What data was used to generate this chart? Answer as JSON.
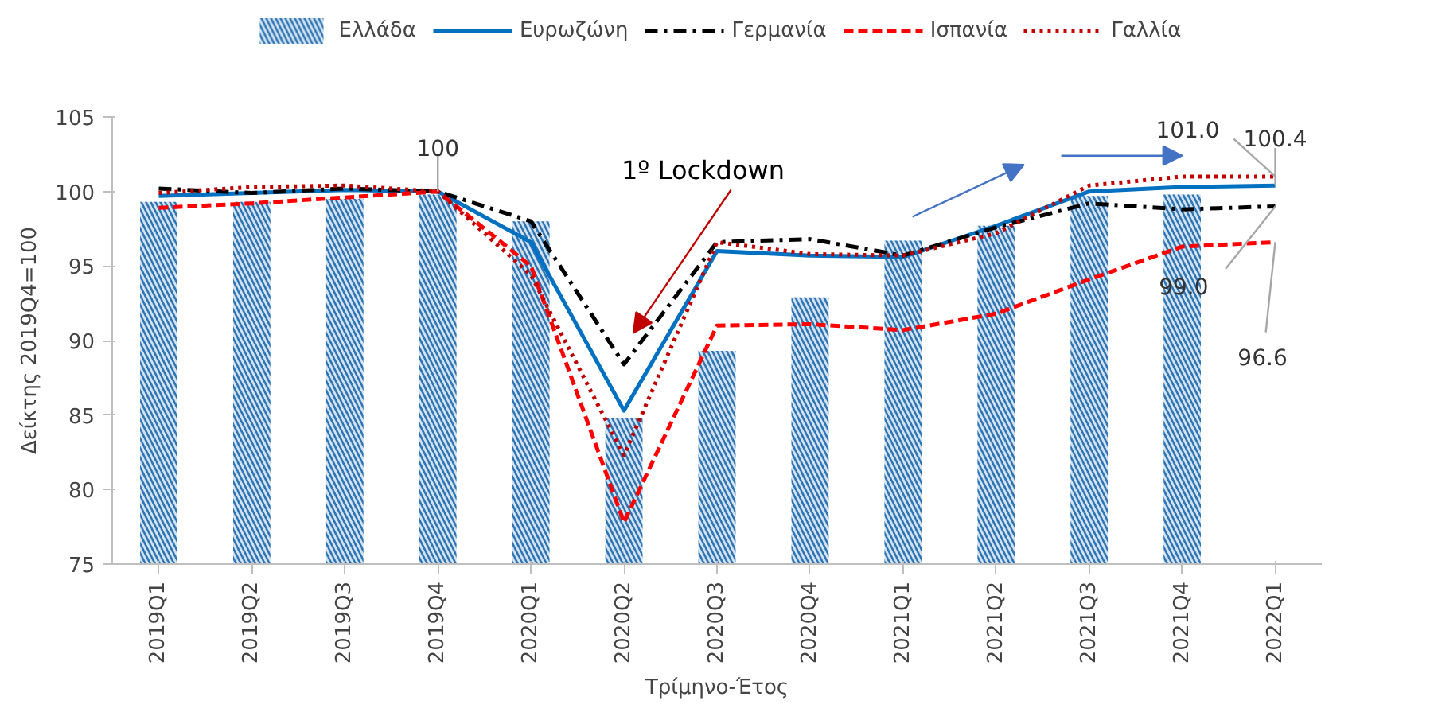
{
  "chart_data": {
    "type": "line",
    "categories": [
      "2019Q1",
      "2019Q2",
      "2019Q3",
      "2019Q4",
      "2020Q1",
      "2020Q2",
      "2020Q3",
      "2020Q4",
      "2021Q1",
      "2021Q2",
      "2021Q3",
      "2021Q4",
      "2022Q1"
    ],
    "series": [
      {
        "name": "Ελλάδα",
        "type": "bar",
        "color": "#2e75b6",
        "values": [
          99.3,
          99.3,
          99.5,
          99.8,
          98.0,
          84.8,
          89.3,
          92.9,
          96.7,
          97.7,
          99.7,
          99.8,
          null
        ]
      },
      {
        "name": "Ευρωζώνη",
        "line_style": "solid",
        "color": "#0070c0",
        "values": [
          99.7,
          99.9,
          100.1,
          100,
          96.6,
          85.3,
          96.0,
          95.7,
          95.6,
          97.7,
          100.0,
          100.3,
          100.4
        ]
      },
      {
        "name": "Γερμανία",
        "line_style": "dashdot",
        "color": "#000000",
        "values": [
          100.2,
          99.9,
          100.2,
          100,
          98.0,
          88.4,
          96.6,
          96.8,
          95.7,
          97.6,
          99.2,
          98.8,
          99.0
        ]
      },
      {
        "name": "Ισπανία",
        "line_style": "dashed",
        "color": "#ff0000",
        "values": [
          98.9,
          99.2,
          99.6,
          100,
          95.0,
          77.8,
          91.0,
          91.1,
          90.7,
          91.8,
          94.1,
          96.3,
          96.6
        ]
      },
      {
        "name": "Γαλλία",
        "line_style": "dotted",
        "color": "#c00000",
        "values": [
          99.9,
          100.3,
          100.4,
          100,
          94.4,
          82.3,
          96.6,
          95.8,
          95.7,
          97.2,
          100.4,
          101.0,
          101.0
        ]
      }
    ],
    "ylim": [
      75,
      105
    ],
    "yticks": [
      75,
      80,
      85,
      90,
      95,
      100,
      105
    ],
    "xlabel": "Τρίμηνο-Έτος",
    "ylabel": "Δείκτης 2019Q4=100",
    "legend": "top",
    "grid": false,
    "annotations": [
      {
        "text": "100",
        "x": "2019Q4",
        "y": 100
      },
      "1º Lockdown",
      {
        "text": "101.0",
        "x": "2022Q1",
        "y": 101.0
      },
      {
        "text": "100.4",
        "x": "2022Q1",
        "y": 100.4
      },
      {
        "text": "99.0",
        "x": "2022Q1",
        "y": 99.0
      },
      {
        "text": "96.6",
        "x": "2022Q1",
        "y": 96.6
      }
    ]
  }
}
